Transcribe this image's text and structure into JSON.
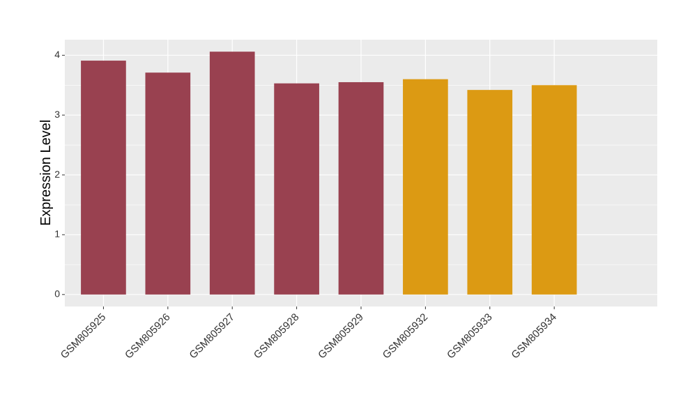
{
  "chart_data": {
    "type": "bar",
    "y_label": "Expression Level",
    "categories": [
      "GSM805925",
      "GSM805926",
      "GSM805927",
      "GSM805928",
      "GSM805929",
      "GSM805932",
      "GSM805933",
      "GSM805934"
    ],
    "values": [
      3.91,
      3.71,
      4.06,
      3.53,
      3.55,
      3.6,
      3.42,
      3.5
    ],
    "colors": [
      "#994150",
      "#994150",
      "#994150",
      "#994150",
      "#994150",
      "#dc9a13",
      "#dc9a13",
      "#dc9a13"
    ],
    "ylim": [
      -0.2,
      4.26
    ],
    "yticks": [
      0,
      1,
      2,
      3,
      4
    ],
    "grid": true
  }
}
